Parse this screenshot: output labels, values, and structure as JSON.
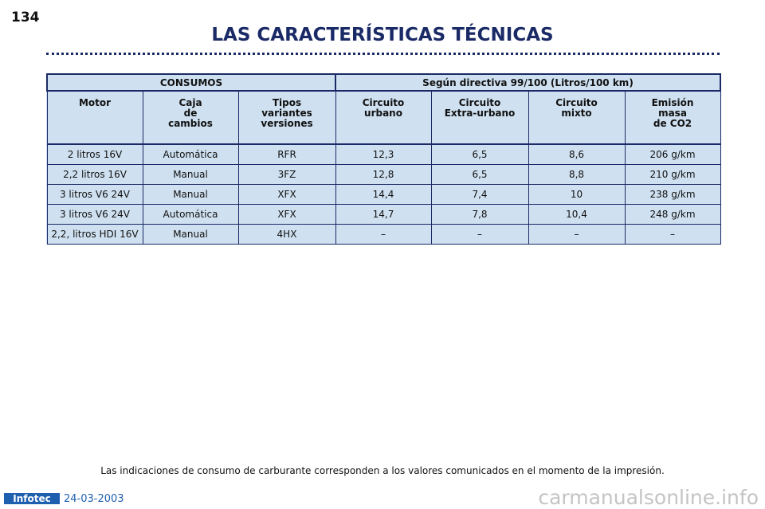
{
  "page_number": "134",
  "title": "LAS CARACTERÍSTICAS TÉCNICAS",
  "table": {
    "groups": [
      "CONSUMOS",
      "Según directiva 99/100 (Litros/100 km)"
    ],
    "columns": [
      [
        "Motor"
      ],
      [
        "Caja",
        "de",
        "cambios"
      ],
      [
        "Tipos",
        "variantes",
        "versiones"
      ],
      [
        "Circuito",
        "urbano"
      ],
      [
        "Circuito",
        "Extra-urbano"
      ],
      [
        "Circuito",
        "mixto"
      ],
      [
        "Emisión",
        "masa",
        "de CO2"
      ]
    ],
    "rows": [
      [
        "2 litros 16V",
        "Automática",
        "RFR",
        "12,3",
        "6,5",
        "8,6",
        "206 g/km"
      ],
      [
        "2,2 litros 16V",
        "Manual",
        "3FZ",
        "12,8",
        "6,5",
        "8,8",
        "210 g/km"
      ],
      [
        "3 litros V6 24V",
        "Manual",
        "XFX",
        "14,4",
        "7,4",
        "10",
        "238 g/km"
      ],
      [
        "3 litros V6 24V",
        "Automática",
        "XFX",
        "14,7",
        "7,8",
        "10,4",
        "248 g/km"
      ],
      [
        "2,2, litros HDI 16V",
        "Manual",
        "4HX",
        "–",
        "–",
        "–",
        "–"
      ]
    ]
  },
  "footnote": "Las indicaciones de consumo de carburante corresponden a los valores comunicados en el momento de la impresión.",
  "footer": {
    "logo": "Infotec",
    "date": "24-03-2003",
    "watermark": "carmanualsonline.info"
  }
}
